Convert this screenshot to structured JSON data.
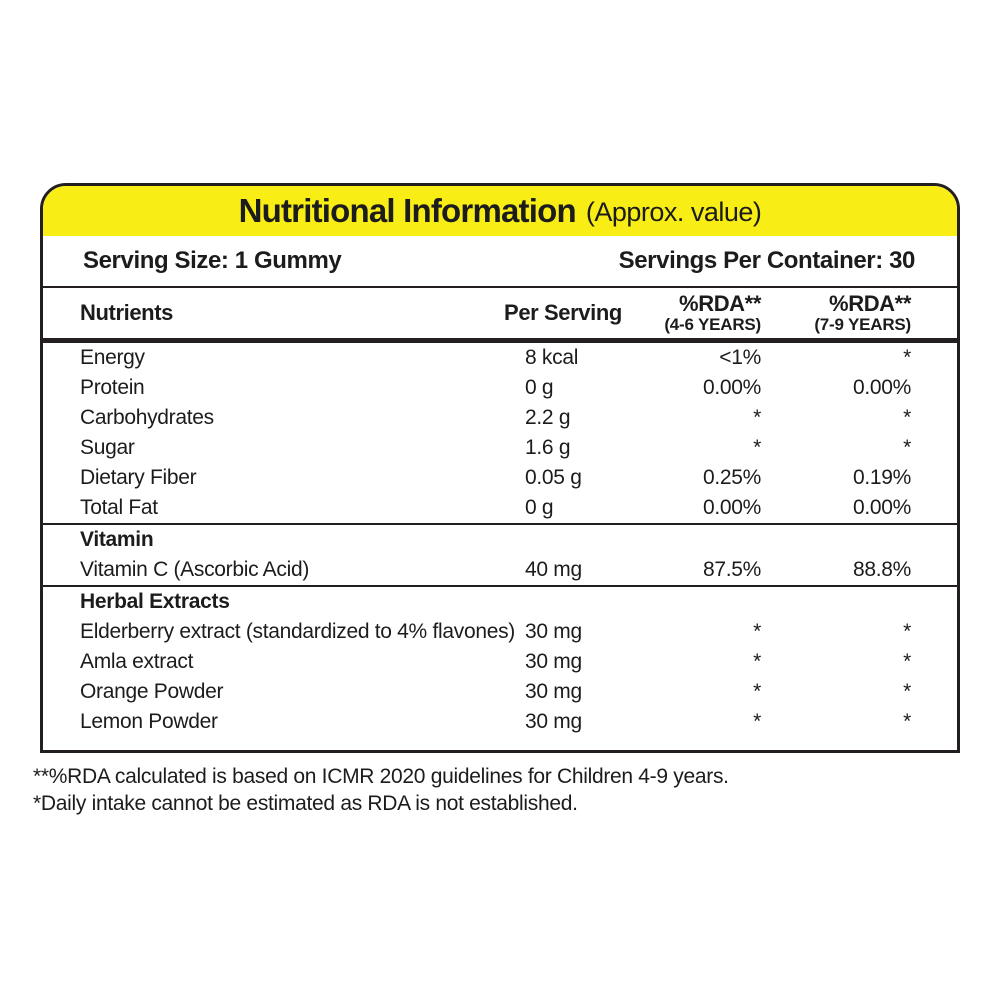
{
  "header": {
    "title": "Nutritional Information",
    "subtitle": "(Approx. value)"
  },
  "serving": {
    "size": "Serving Size: 1 Gummy",
    "per_container": "Servings Per Container: 30"
  },
  "table": {
    "columns": [
      {
        "label": "Nutrients",
        "sub": ""
      },
      {
        "label": "Per Serving",
        "sub": ""
      },
      {
        "label": "%RDA**",
        "sub": "(4-6 YEARS)"
      },
      {
        "label": "%RDA**",
        "sub": "(7-9 YEARS)"
      }
    ],
    "sections": [
      {
        "heading": "",
        "rows": [
          [
            "Energy",
            "8 kcal",
            "<1%",
            "*"
          ],
          [
            "Protein",
            "0 g",
            "0.00%",
            "0.00%"
          ],
          [
            "Carbohydrates",
            "2.2 g",
            "*",
            "*"
          ],
          [
            "Sugar",
            "1.6 g",
            "*",
            "*"
          ],
          [
            "Dietary Fiber",
            "0.05 g",
            "0.25%",
            "0.19%"
          ],
          [
            "Total Fat",
            "0 g",
            "0.00%",
            "0.00%"
          ]
        ]
      },
      {
        "heading": "Vitamin",
        "rows": [
          [
            "Vitamin C (Ascorbic Acid)",
            "40 mg",
            "87.5%",
            "88.8%"
          ]
        ]
      },
      {
        "heading": "Herbal Extracts",
        "rows": [
          [
            "Elderberry extract (standardized to 4% flavones)",
            "30 mg",
            "*",
            "*"
          ],
          [
            "Amla extract",
            "30 mg",
            "*",
            "*"
          ],
          [
            "Orange Powder",
            "30 mg",
            "*",
            "*"
          ],
          [
            "Lemon Powder",
            "30 mg",
            "*",
            "*"
          ]
        ]
      }
    ]
  },
  "footnotes": [
    "**%RDA calculated is based on ICMR 2020 guidelines for Children 4-9 years.",
    "*Daily intake cannot be estimated as RDA is not established."
  ],
  "colors": {
    "banner_yellow": "#f9ed16",
    "text_black": "#1c1c1c",
    "border_black": "#231f20"
  }
}
